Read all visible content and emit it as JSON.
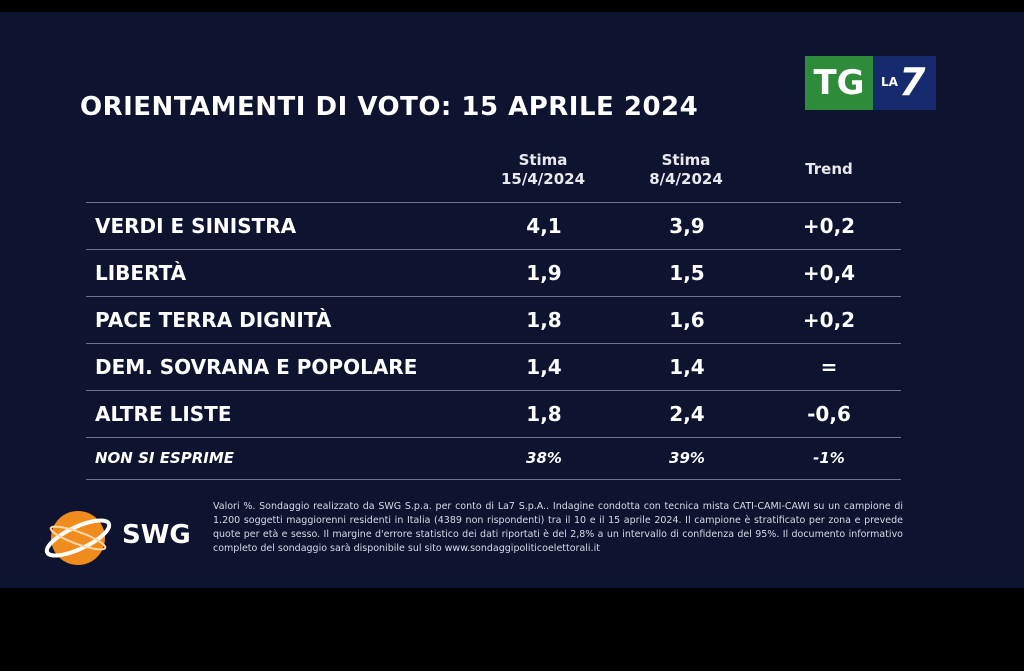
{
  "title": "ORIENTAMENTI DI VOTO: 15 APRILE 2024",
  "broadcaster_logo": {
    "part1": "TG",
    "part2_small": "LA",
    "part2_big": "7"
  },
  "chart_data": {
    "type": "table",
    "columns": [
      {
        "line1": "Stima",
        "line2": "15/4/2024"
      },
      {
        "line1": "Stima",
        "line2": "8/4/2024"
      },
      {
        "line1": "Trend",
        "line2": ""
      }
    ],
    "rows": [
      {
        "party": "VERDI E SINISTRA",
        "current": "4,1",
        "previous": "3,9",
        "trend": "+0,2"
      },
      {
        "party": "LIBERTÀ",
        "current": "1,9",
        "previous": "1,5",
        "trend": "+0,4"
      },
      {
        "party": "PACE TERRA DIGNITÀ",
        "current": "1,8",
        "previous": "1,6",
        "trend": "+0,2"
      },
      {
        "party": "DEM. SOVRANA E POPOLARE",
        "current": "1,4",
        "previous": "1,4",
        "trend": "="
      },
      {
        "party": "ALTRE LISTE",
        "current": "1,8",
        "previous": "2,4",
        "trend": "-0,6"
      }
    ],
    "abstention": {
      "party": "NON SI ESPRIME",
      "current": "38%",
      "previous": "39%",
      "trend": "-1%"
    }
  },
  "pollster": {
    "name": "SWG"
  },
  "footnote": "Valori %. Sondaggio realizzato da SWG S.p.a. per conto di La7 S.p.A.. Indagine condotta con tecnica mista CATI-CAMI-CAWI su un campione di 1.200 soggetti maggiorenni residenti in Italia (4389 non rispondenti) tra il 10 e il 15 aprile 2024. Il campione è stratificato per zona e prevede quote per età e sesso. Il margine d'errore statistico dei dati riportati è del 2,8% a un intervallo di confidenza del 95%. Il documento informativo completo del sondaggio sarà disponibile sul sito www.sondaggipoliticoelettorali.it",
  "colors": {
    "background": "#0e1330",
    "tg_green": "#2e8b3a",
    "la7_blue": "#172a6e",
    "swg_orange": "#f08c1e"
  }
}
